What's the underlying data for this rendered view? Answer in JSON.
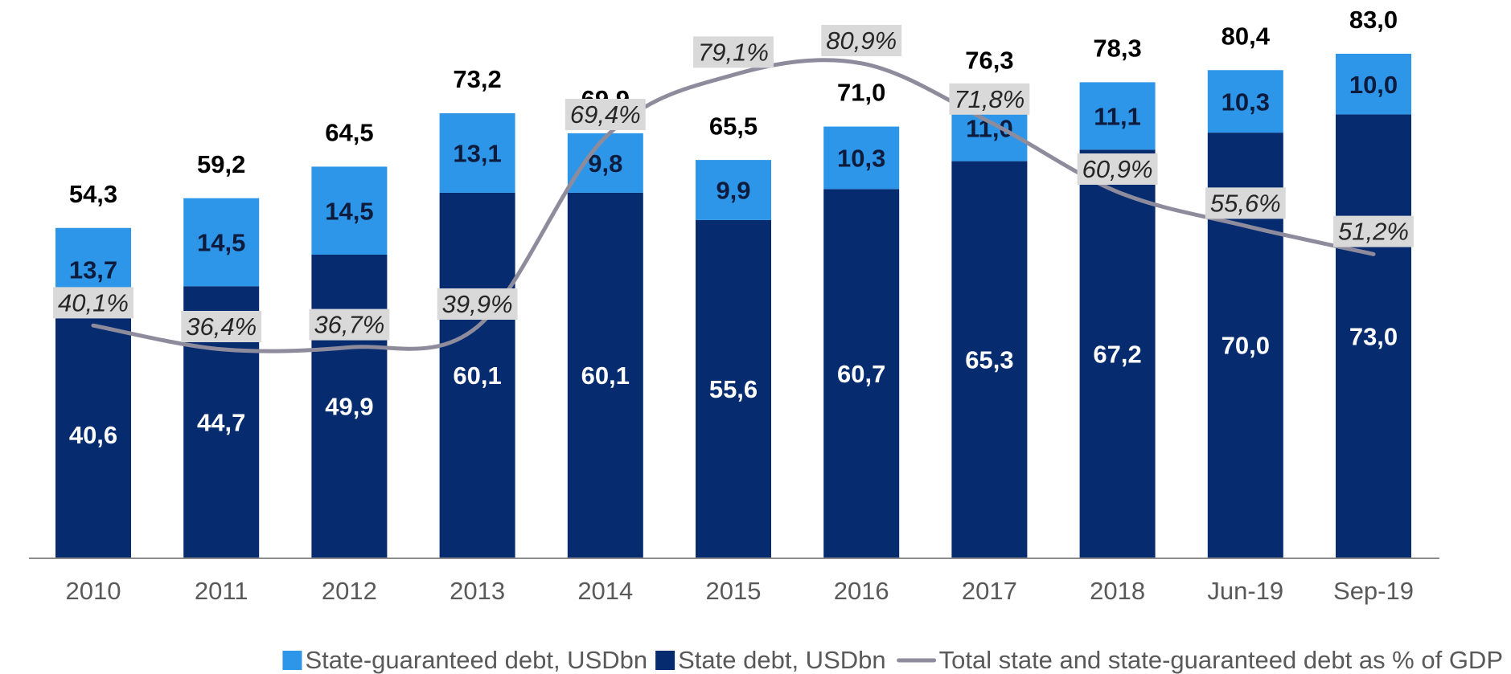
{
  "chart_data": {
    "type": "bar",
    "stacked": true,
    "categories": [
      "2010",
      "2011",
      "2012",
      "2013",
      "2014",
      "2015",
      "2016",
      "2017",
      "2018",
      "Jun-19",
      "Sep-19"
    ],
    "series": [
      {
        "name": "State debt, USDbn",
        "color": "#062b6f",
        "type": "bar",
        "values": [
          40.6,
          44.7,
          49.9,
          60.1,
          60.1,
          55.6,
          60.7,
          65.3,
          67.2,
          70.0,
          73.0
        ],
        "value_labels": [
          "40,6",
          "44,7",
          "49,9",
          "60,1",
          "60,1",
          "55,6",
          "60,7",
          "65,3",
          "67,2",
          "70,0",
          "73,0"
        ]
      },
      {
        "name": "State-guaranteed debt, USDbn",
        "color": "#2e96e8",
        "type": "bar",
        "values": [
          13.7,
          14.5,
          14.5,
          13.1,
          9.8,
          9.9,
          10.3,
          11.0,
          11.1,
          10.3,
          10.0
        ],
        "value_labels": [
          "13,7",
          "14,5",
          "14,5",
          "13,1",
          "9,8",
          "9,9",
          "10,3",
          "11,0",
          "11,1",
          "10,3",
          "10,0"
        ]
      },
      {
        "name": "Total state and state-guaranteed debt as % of GDP",
        "color": "#8e8c9c",
        "type": "line",
        "axis": "y2",
        "values": [
          40.1,
          36.4,
          36.7,
          39.9,
          69.4,
          79.1,
          80.9,
          71.8,
          60.9,
          55.6,
          51.2
        ],
        "value_labels": [
          "40,1%",
          "36,4%",
          "36,7%",
          "39,9%",
          "69,4%",
          "79,1%",
          "80,9%",
          "71,8%",
          "60,9%",
          "55,6%",
          "51,2%"
        ]
      }
    ],
    "total_labels": [
      "54,3",
      "59,2",
      "64,5",
      "73,2",
      "69,9",
      "65,5",
      "71,0",
      "76,3",
      "78,3",
      "80,4",
      "83,0"
    ],
    "ylim": [
      0,
      90
    ],
    "y2lim": [
      4,
      89
    ],
    "legend": "bottom"
  }
}
